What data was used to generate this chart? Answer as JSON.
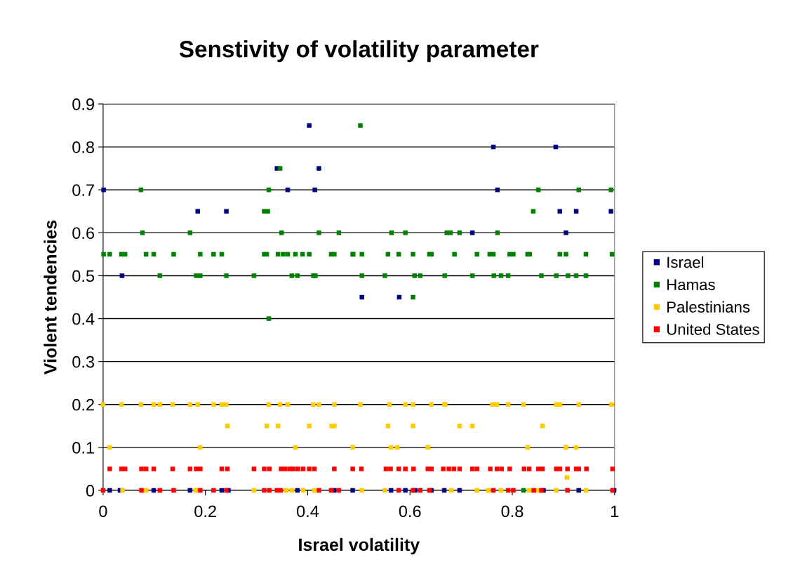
{
  "chart_data": {
    "type": "scatter",
    "title": "Senstivity of volatility parameter",
    "xlabel": "Israel volatility",
    "ylabel": "Violent tendencies",
    "xlim": [
      0,
      1
    ],
    "xticks": [
      0,
      0.2,
      0.4,
      0.6,
      0.8,
      1
    ],
    "ylim": [
      0,
      0.9
    ],
    "yticks": [
      0,
      0.1,
      0.2,
      0.3,
      0.4,
      0.5,
      0.6,
      0.7,
      0.8,
      0.9
    ],
    "grid": "y",
    "legend": "right",
    "marker": "square",
    "series": [
      {
        "name": "Israel",
        "color": "#000080",
        "x": [
          0.403,
          0.34,
          0.422,
          0.001,
          0.361,
          0.414,
          0.185,
          0.241,
          0.037,
          0.763,
          0.885,
          0.771,
          0.893,
          0.925,
          0.993,
          0.722,
          0.905,
          0.506,
          0.579,
          0.013,
          0.033,
          0.099,
          0.17,
          0.232,
          0.245,
          0.38,
          0.452,
          0.488,
          0.563,
          0.591,
          0.61,
          0.642,
          0.667,
          0.697,
          0.861,
          0.93,
          0.999
        ],
        "values": [
          0.85,
          0.75,
          0.75,
          0.7,
          0.7,
          0.7,
          0.65,
          0.65,
          0.5,
          0.8,
          0.8,
          0.7,
          0.65,
          0.65,
          0.65,
          0.6,
          0.6,
          0.45,
          0.45,
          0,
          0,
          0,
          0,
          0,
          0,
          0,
          0,
          0,
          0,
          0,
          0,
          0,
          0,
          0,
          0,
          0,
          0
        ]
      },
      {
        "name": "Hamas",
        "color": "#008000",
        "x": [
          0.346,
          0.074,
          0.324,
          0.315,
          0.322,
          0.077,
          0.17,
          0.349,
          0.422,
          0.461,
          0.001,
          0.013,
          0.036,
          0.043,
          0.084,
          0.099,
          0.138,
          0.19,
          0.216,
          0.232,
          0.315,
          0.32,
          0.342,
          0.352,
          0.361,
          0.376,
          0.39,
          0.403,
          0.446,
          0.452,
          0.489,
          0.111,
          0.182,
          0.19,
          0.241,
          0.295,
          0.369,
          0.38,
          0.411,
          0.415,
          0.324,
          0.503,
          0.851,
          0.93,
          0.993,
          0.841,
          0.564,
          0.591,
          0.672,
          0.679,
          0.697,
          0.771,
          0.488,
          0.506,
          0.557,
          0.578,
          0.606,
          0.638,
          0.642,
          0.687,
          0.731,
          0.756,
          0.763,
          0.795,
          0.802,
          0.83,
          0.834,
          0.893,
          0.905,
          0.944,
          0.995,
          0.506,
          0.551,
          0.609,
          0.62,
          0.668,
          0.722,
          0.764,
          0.778,
          0.792,
          0.857,
          0.886,
          0.909,
          0.925,
          0.944,
          0.606,
          0.822
        ],
        "values": [
          0.75,
          0.7,
          0.7,
          0.65,
          0.65,
          0.6,
          0.6,
          0.6,
          0.6,
          0.6,
          0.55,
          0.55,
          0.55,
          0.55,
          0.55,
          0.55,
          0.55,
          0.55,
          0.55,
          0.55,
          0.55,
          0.55,
          0.55,
          0.55,
          0.55,
          0.55,
          0.55,
          0.55,
          0.55,
          0.55,
          0.55,
          0.5,
          0.5,
          0.5,
          0.5,
          0.5,
          0.5,
          0.5,
          0.5,
          0.5,
          0.4,
          0.85,
          0.7,
          0.7,
          0.7,
          0.65,
          0.6,
          0.6,
          0.6,
          0.6,
          0.6,
          0.6,
          0.55,
          0.55,
          0.55,
          0.55,
          0.55,
          0.55,
          0.55,
          0.55,
          0.55,
          0.55,
          0.55,
          0.55,
          0.55,
          0.55,
          0.55,
          0.55,
          0.55,
          0.55,
          0.55,
          0.5,
          0.5,
          0.5,
          0.5,
          0.5,
          0.5,
          0.5,
          0.5,
          0.5,
          0.5,
          0.5,
          0.5,
          0.5,
          0.5,
          0.45,
          0
        ]
      },
      {
        "name": "Palestinians",
        "color": "#ffcc00",
        "x": [
          0.0,
          0.036,
          0.074,
          0.099,
          0.111,
          0.136,
          0.17,
          0.185,
          0.216,
          0.232,
          0.241,
          0.324,
          0.243,
          0.32,
          0.013,
          0.19,
          0.346,
          0.361,
          0.411,
          0.422,
          0.452,
          0.503,
          0.56,
          0.591,
          0.606,
          0.642,
          0.667,
          0.342,
          0.403,
          0.447,
          0.452,
          0.557,
          0.606,
          0.376,
          0.488,
          0.563,
          0.575,
          0.635,
          0.669,
          0.761,
          0.77,
          0.792,
          0.822,
          0.886,
          0.893,
          0.93,
          0.994,
          0.697,
          0.722,
          0.859,
          0.83,
          0.905,
          0.925,
          0.907,
          0.038,
          0.084,
          0.181,
          0.295,
          0.358,
          0.369,
          0.391,
          0.413,
          0.506,
          0.551,
          0.681,
          0.731,
          0.753,
          0.778,
          0.833,
          0.85,
          0.886,
          0.944
        ],
        "values": [
          0.2,
          0.2,
          0.2,
          0.2,
          0.2,
          0.2,
          0.2,
          0.2,
          0.2,
          0.2,
          0.2,
          0.2,
          0.15,
          0.15,
          0.1,
          0.1,
          0.2,
          0.2,
          0.2,
          0.2,
          0.2,
          0.2,
          0.2,
          0.2,
          0.2,
          0.2,
          0.2,
          0.15,
          0.15,
          0.15,
          0.15,
          0.15,
          0.15,
          0.1,
          0.1,
          0.1,
          0.1,
          0.1,
          0.2,
          0.2,
          0.2,
          0.2,
          0.2,
          0.2,
          0.2,
          0.2,
          0.2,
          0.15,
          0.15,
          0.15,
          0.1,
          0.1,
          0.1,
          0.03,
          0,
          0,
          0,
          0,
          0,
          0,
          0,
          0,
          0,
          0,
          0,
          0,
          0,
          0,
          0,
          0,
          0,
          0
        ]
      },
      {
        "name": "United States",
        "color": "#ff0000",
        "x": [
          0.013,
          0.036,
          0.043,
          0.075,
          0.084,
          0.099,
          0.136,
          0.17,
          0.182,
          0.19,
          0.232,
          0.243,
          0.295,
          0.315,
          0.325,
          0.348,
          0.356,
          0.365,
          0.372,
          0.381,
          0.391,
          0.403,
          0.413,
          0.452,
          0.488,
          0.505,
          0.553,
          0.562,
          0.578,
          0.591,
          0.607,
          0.635,
          0.642,
          0.665,
          0.676,
          0.686,
          0.697,
          0.722,
          0.731,
          0.757,
          0.77,
          0.779,
          0.795,
          0.823,
          0.833,
          0.851,
          0.859,
          0.886,
          0.893,
          0.908,
          0.925,
          0.93,
          0.945,
          0.996,
          0.0,
          0.075,
          0.111,
          0.138,
          0.19,
          0.216,
          0.241,
          0.315,
          0.325,
          0.34,
          0.347,
          0.422,
          0.446,
          0.461,
          0.578,
          0.606,
          0.62,
          0.638,
          0.763,
          0.792,
          0.802,
          0.842,
          0.857,
          0.908,
          0.996
        ],
        "values": [
          0.05,
          0.05,
          0.05,
          0.05,
          0.05,
          0.05,
          0.05,
          0.05,
          0.05,
          0.05,
          0.05,
          0.05,
          0.05,
          0.05,
          0.05,
          0.05,
          0.05,
          0.05,
          0.05,
          0.05,
          0.05,
          0.05,
          0.05,
          0.05,
          0.05,
          0.05,
          0.05,
          0.05,
          0.05,
          0.05,
          0.05,
          0.05,
          0.05,
          0.05,
          0.05,
          0.05,
          0.05,
          0.05,
          0.05,
          0.05,
          0.05,
          0.05,
          0.05,
          0.05,
          0.05,
          0.05,
          0.05,
          0.05,
          0.05,
          0.05,
          0.05,
          0.05,
          0.05,
          0.05,
          0,
          0,
          0,
          0,
          0,
          0,
          0,
          0,
          0,
          0,
          0,
          0,
          0,
          0,
          0,
          0,
          0,
          0,
          0,
          0,
          0,
          0,
          0,
          0,
          0
        ]
      }
    ]
  }
}
